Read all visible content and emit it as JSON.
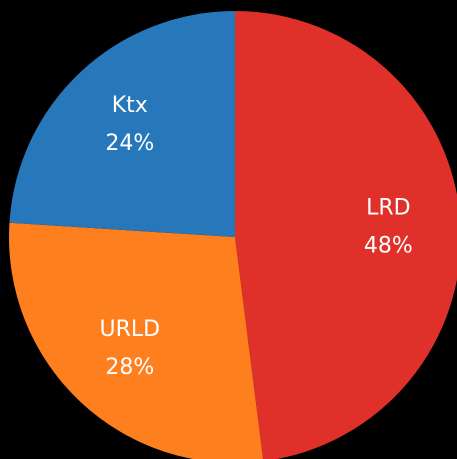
{
  "chart_data": {
    "type": "pie",
    "categories": [
      "LRD",
      "URLD",
      "Ktx"
    ],
    "values": [
      48,
      28,
      24
    ],
    "value_labels": [
      "48%",
      "28%",
      "24%"
    ],
    "colors": [
      "#e0302a",
      "#fd7f1e",
      "#2777bb"
    ]
  }
}
